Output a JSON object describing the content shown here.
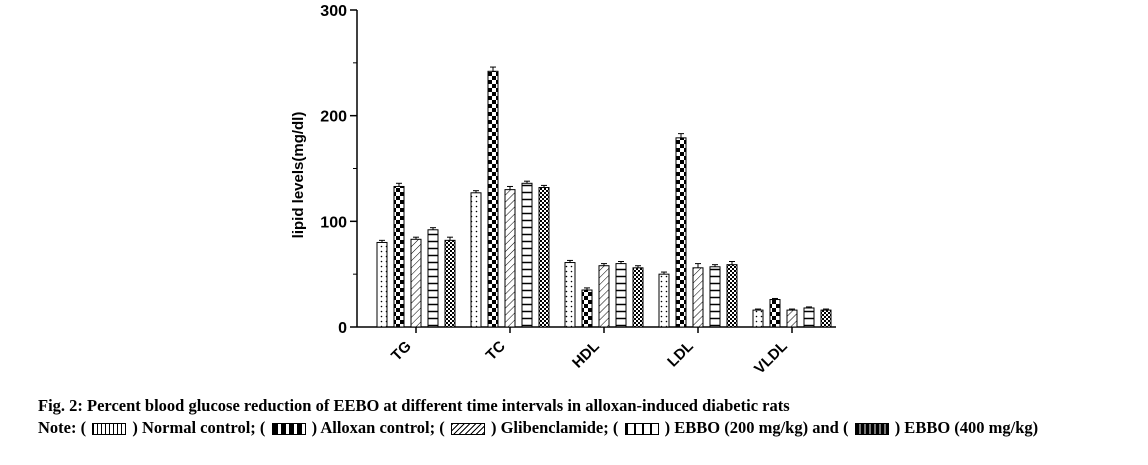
{
  "chart_data": {
    "type": "bar",
    "ylabel": "lipid levels(mg/dl)",
    "ylim": [
      0,
      300
    ],
    "yticks": [
      "0",
      "100",
      "200",
      "300"
    ],
    "categories": [
      "TG",
      "TC",
      "HDL",
      "LDL",
      "VLDL"
    ],
    "series": [
      {
        "name": "Normal control",
        "values": [
          80,
          127,
          61,
          50,
          16
        ],
        "errors": [
          2,
          2,
          2,
          2,
          1
        ]
      },
      {
        "name": "Alloxan control",
        "values": [
          133,
          242,
          35,
          179,
          26
        ],
        "errors": [
          3,
          4,
          2,
          4,
          1
        ]
      },
      {
        "name": "Glibenclamide",
        "values": [
          83,
          130,
          58,
          56,
          16
        ],
        "errors": [
          2,
          3,
          2,
          4,
          1
        ]
      },
      {
        "name": "EBBO (200 mg/kg)",
        "values": [
          92,
          136,
          60,
          57,
          18
        ],
        "errors": [
          2,
          2,
          2,
          2,
          1
        ]
      },
      {
        "name": "EBBO (400 mg/kg)",
        "values": [
          82,
          132,
          56,
          59,
          16
        ],
        "errors": [
          3,
          2,
          2,
          3,
          1
        ]
      }
    ]
  },
  "caption": {
    "title": "Fig. 2: Percent blood glucose reduction of EEBO at different time intervals in alloxan-induced diabetic rats",
    "note_prefix": "Note: (",
    "note_1": ") Normal control; (",
    "note_2": ") Alloxan control; (",
    "note_3": ") Glibenclamide; (",
    "note_4": ") EBBO (200 mg/kg) and (",
    "note_5": ") EBBO (400 mg/kg)"
  }
}
